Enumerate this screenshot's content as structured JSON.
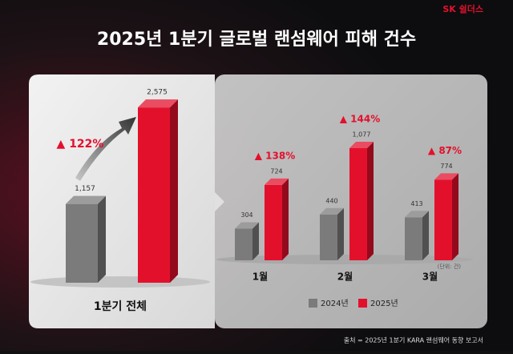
{
  "brand": "SK 쉴더스",
  "title": "2025년 1분기 글로벌 랜섬웨어 피해 건수",
  "source": "출처 = 2025년 1분기 KARA 랜섬웨어 동향 보고서",
  "chart_data": [
    {
      "type": "bar3d",
      "category": "1분기 전체",
      "values": [
        1157,
        2575
      ],
      "value_labels": [
        "1,157",
        "2,575"
      ],
      "colors": [
        "#7b7b7b",
        "#e3102c"
      ],
      "change_label": "▲ 122%"
    },
    {
      "type": "bar3d",
      "categories": [
        "1월",
        "2월",
        "3월"
      ],
      "series": [
        {
          "name": "2024년",
          "color": "#7b7b7b",
          "values": [
            304,
            440,
            413
          ],
          "value_labels": [
            "304",
            "440",
            "413"
          ]
        },
        {
          "name": "2025년",
          "color": "#e3102c",
          "values": [
            724,
            1077,
            774
          ],
          "value_labels": [
            "724",
            "1,077",
            "774"
          ]
        }
      ],
      "change_labels": [
        "▲ 138%",
        "▲ 144%",
        "▲ 87%"
      ],
      "unit": "(단위: 건)"
    }
  ]
}
